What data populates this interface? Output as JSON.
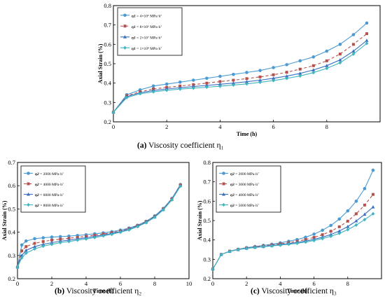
{
  "chart_data": [
    {
      "type": "line",
      "title": "",
      "xlabel": "Time (h)",
      "ylabel": "Axial Strain (%)",
      "xlim": [
        0,
        10
      ],
      "ylim": [
        0.2,
        0.8
      ],
      "xticks": [
        0,
        2,
        4,
        6,
        8
      ],
      "yticks": [
        0.2,
        0.3,
        0.4,
        0.5,
        0.6,
        0.7,
        0.8
      ],
      "x": [
        0,
        0.5,
        1,
        1.5,
        2,
        2.5,
        3,
        3.5,
        4,
        4.5,
        5,
        5.5,
        6,
        6.5,
        7,
        7.5,
        8,
        8.5,
        9,
        9.5
      ],
      "legend_position": "top-left",
      "series": [
        {
          "name": "η1 = 4×10⁶ MPa·h⁷",
          "color": "#4a9ad4",
          "marker": "circle",
          "dash": "",
          "values": [
            0.25,
            0.34,
            0.365,
            0.385,
            0.395,
            0.405,
            0.415,
            0.425,
            0.435,
            0.445,
            0.455,
            0.465,
            0.48,
            0.495,
            0.515,
            0.535,
            0.565,
            0.6,
            0.65,
            0.71
          ]
        },
        {
          "name": "η1 = 8×10⁶ MPa·h⁷",
          "color": "#b5504a",
          "marker": "square",
          "dash": "4 3",
          "values": [
            0.25,
            0.335,
            0.355,
            0.37,
            0.378,
            0.385,
            0.392,
            0.4,
            0.408,
            0.415,
            0.423,
            0.432,
            0.443,
            0.456,
            0.472,
            0.49,
            0.515,
            0.55,
            0.6,
            0.655
          ]
        },
        {
          "name": "η1 = 2×10⁷ MPa·h⁷",
          "color": "#3a6fc0",
          "marker": "triangle",
          "dash": "",
          "values": [
            0.25,
            0.33,
            0.35,
            0.362,
            0.37,
            0.376,
            0.382,
            0.388,
            0.394,
            0.4,
            0.407,
            0.415,
            0.425,
            0.436,
            0.45,
            0.468,
            0.49,
            0.52,
            0.565,
            0.62
          ]
        },
        {
          "name": "η1 = 1×10⁸ MPa·h⁷",
          "color": "#3fb5c0",
          "marker": "diamond",
          "dash": "",
          "values": [
            0.25,
            0.325,
            0.345,
            0.355,
            0.363,
            0.369,
            0.374,
            0.379,
            0.384,
            0.39,
            0.396,
            0.404,
            0.413,
            0.424,
            0.437,
            0.454,
            0.476,
            0.505,
            0.55,
            0.605
          ]
        }
      ]
    },
    {
      "type": "line",
      "title": "",
      "xlabel": "Time (h)",
      "ylabel": "Axial Strain (%)",
      "xlim": [
        0,
        10
      ],
      "ylim": [
        0.2,
        0.7
      ],
      "xticks": [
        0,
        2,
        4,
        6,
        8,
        10
      ],
      "yticks": [
        0.2,
        0.3,
        0.4,
        0.5,
        0.6,
        0.7
      ],
      "x": [
        0,
        0.25,
        0.5,
        1,
        1.5,
        2,
        2.5,
        3,
        3.5,
        4,
        4.5,
        5,
        5.5,
        6,
        6.5,
        7,
        7.5,
        8,
        8.5,
        9,
        9.5
      ],
      "legend_position": "top-left",
      "series": [
        {
          "name": "η2 = 2000 MPa·h⁷",
          "color": "#4a9ad4",
          "marker": "circle",
          "dash": "",
          "values": [
            0.25,
            0.345,
            0.362,
            0.372,
            0.376,
            0.379,
            0.381,
            0.383,
            0.386,
            0.389,
            0.393,
            0.397,
            0.402,
            0.409,
            0.418,
            0.43,
            0.447,
            0.47,
            0.502,
            0.545,
            0.605
          ]
        },
        {
          "name": "η2 = 4000 MPa·h⁷",
          "color": "#b5504a",
          "marker": "square",
          "dash": "4 3",
          "values": [
            0.25,
            0.32,
            0.338,
            0.352,
            0.36,
            0.366,
            0.37,
            0.374,
            0.378,
            0.382,
            0.387,
            0.392,
            0.398,
            0.405,
            0.415,
            0.428,
            0.445,
            0.468,
            0.5,
            0.543,
            0.603
          ]
        },
        {
          "name": "η2 = 6000 MPa·h⁷",
          "color": "#3a6fc0",
          "marker": "triangle",
          "dash": "",
          "values": [
            0.25,
            0.3,
            0.322,
            0.338,
            0.348,
            0.355,
            0.361,
            0.366,
            0.371,
            0.376,
            0.382,
            0.388,
            0.395,
            0.403,
            0.413,
            0.426,
            0.443,
            0.466,
            0.498,
            0.541,
            0.601
          ]
        },
        {
          "name": "η2 = 8000 MPa·h⁷",
          "color": "#3fb5c0",
          "marker": "diamond",
          "dash": "",
          "values": [
            0.25,
            0.29,
            0.31,
            0.328,
            0.34,
            0.348,
            0.355,
            0.36,
            0.366,
            0.371,
            0.377,
            0.384,
            0.391,
            0.4,
            0.41,
            0.424,
            0.441,
            0.464,
            0.496,
            0.539,
            0.598
          ]
        }
      ]
    },
    {
      "type": "line",
      "title": "",
      "xlabel": "Time (h)",
      "ylabel": "Axial Strain (%)",
      "xlim": [
        0,
        10
      ],
      "ylim": [
        0.2,
        0.8
      ],
      "xticks": [
        0,
        2,
        4,
        6,
        8
      ],
      "yticks": [
        0.2,
        0.3,
        0.4,
        0.5,
        0.6,
        0.7,
        0.8
      ],
      "x": [
        0,
        0.5,
        1,
        1.5,
        2,
        2.5,
        3,
        3.5,
        4,
        4.5,
        5,
        5.5,
        6,
        6.5,
        7,
        7.5,
        8,
        8.5,
        9,
        9.5
      ],
      "legend_position": "top-left",
      "series": [
        {
          "name": "η3 = 2000 MPa·h⁷",
          "color": "#4a9ad4",
          "marker": "circle",
          "dash": "",
          "values": [
            0.25,
            0.325,
            0.342,
            0.352,
            0.36,
            0.366,
            0.372,
            0.378,
            0.385,
            0.393,
            0.402,
            0.414,
            0.43,
            0.45,
            0.475,
            0.508,
            0.55,
            0.6,
            0.665,
            0.76
          ]
        },
        {
          "name": "η3 = 3000 MPa·h⁷",
          "color": "#b5504a",
          "marker": "square",
          "dash": "4 3",
          "values": [
            0.25,
            0.325,
            0.342,
            0.351,
            0.358,
            0.364,
            0.369,
            0.374,
            0.38,
            0.386,
            0.393,
            0.402,
            0.413,
            0.427,
            0.445,
            0.468,
            0.497,
            0.535,
            0.58,
            0.635
          ]
        },
        {
          "name": "η3 = 4000 MPa·h⁷",
          "color": "#3a6fc0",
          "marker": "triangle",
          "dash": "",
          "values": [
            0.25,
            0.325,
            0.341,
            0.35,
            0.357,
            0.362,
            0.366,
            0.371,
            0.376,
            0.381,
            0.387,
            0.394,
            0.403,
            0.414,
            0.428,
            0.446,
            0.469,
            0.498,
            0.532,
            0.57
          ]
        },
        {
          "name": "η3 = 5000 MPa·h⁷",
          "color": "#3fb5c0",
          "marker": "diamond",
          "dash": "",
          "values": [
            0.25,
            0.325,
            0.341,
            0.35,
            0.356,
            0.361,
            0.365,
            0.369,
            0.373,
            0.378,
            0.383,
            0.389,
            0.397,
            0.407,
            0.419,
            0.434,
            0.453,
            0.477,
            0.505,
            0.535
          ]
        }
      ]
    }
  ],
  "captions": {
    "a": {
      "letter": "(a)",
      "text": "Viscosity coefficient η₁"
    },
    "b": {
      "letter": "(b)",
      "text": "Viscosity coefficient η₂"
    },
    "c": {
      "letter": "(c)",
      "text": "Viscosity coefficient η₃"
    }
  }
}
